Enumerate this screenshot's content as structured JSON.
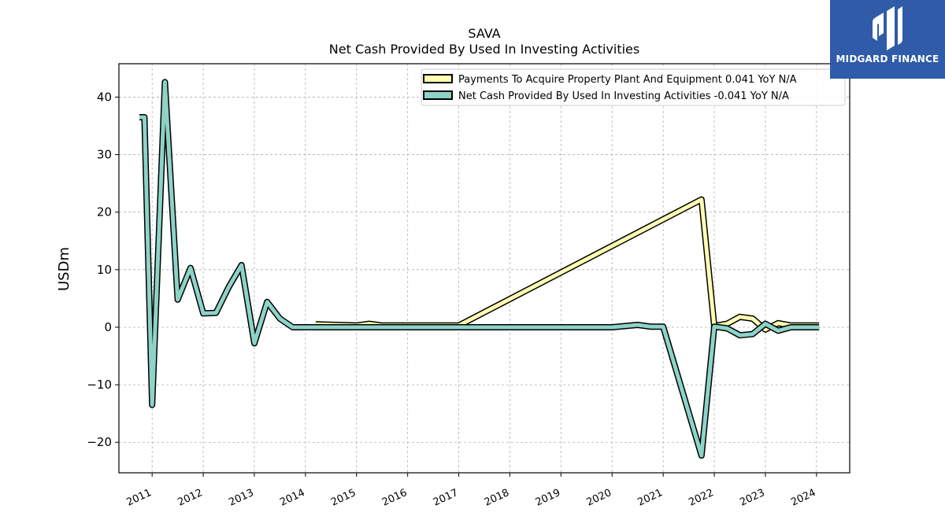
{
  "brand": {
    "name": "MIDGARD FINANCE",
    "logo_icon": "midgard-m-icon",
    "bg_color": "#2f5ba8"
  },
  "chart_data": {
    "type": "line",
    "title": "SAVA",
    "subtitle": "Net Cash Provided By Used In Investing Activities",
    "xlabel": "",
    "ylabel": "USDm",
    "ylim": [
      -25.3,
      45.8
    ],
    "xlim": [
      2010.35,
      2024.65
    ],
    "yticks": [
      -20,
      -10,
      0,
      10,
      20,
      30,
      40
    ],
    "yticklabels": [
      "−20",
      "−10",
      "0",
      "10",
      "20",
      "30",
      "40"
    ],
    "xticks": [
      2011,
      2012,
      2013,
      2014,
      2015,
      2016,
      2017,
      2018,
      2019,
      2020,
      2021,
      2022,
      2023,
      2024
    ],
    "xticklabels": [
      "2011",
      "2012",
      "2013",
      "2014",
      "2015",
      "2016",
      "2017",
      "2018",
      "2019",
      "2020",
      "2021",
      "2022",
      "2023",
      "2024"
    ],
    "grid": true,
    "legend_position": "top-right",
    "series": [
      {
        "name": "Payments To Acquire Property Plant And Equipment  0.041 YoY N/A",
        "color": "#ffffb3",
        "points": [
          [
            2014.2,
            0.5
          ],
          [
            2015.0,
            0.3
          ],
          [
            2015.25,
            0.6
          ],
          [
            2015.5,
            0.3
          ],
          [
            2016.0,
            0.3
          ],
          [
            2016.5,
            0.3
          ],
          [
            2017.0,
            0.3
          ],
          [
            2021.75,
            22.2
          ],
          [
            2022.0,
            0.2
          ],
          [
            2022.25,
            0.6
          ],
          [
            2022.5,
            1.8
          ],
          [
            2022.75,
            1.5
          ],
          [
            2023.0,
            -0.4
          ],
          [
            2023.25,
            0.7
          ],
          [
            2023.5,
            0.3
          ],
          [
            2023.75,
            0.3
          ],
          [
            2024.05,
            0.3
          ]
        ]
      },
      {
        "name": "Net Cash Provided By Used In Investing Activities  -0.041 YoY N/A",
        "color": "#8dd3c7",
        "points": [
          [
            2010.75,
            36.5
          ],
          [
            2010.85,
            36.5
          ],
          [
            2011.0,
            -13.5
          ],
          [
            2011.25,
            42.6
          ],
          [
            2011.5,
            4.8
          ],
          [
            2011.75,
            10.3
          ],
          [
            2012.0,
            2.4
          ],
          [
            2012.25,
            2.5
          ],
          [
            2012.5,
            7.0
          ],
          [
            2012.75,
            10.8
          ],
          [
            2013.0,
            -2.8
          ],
          [
            2013.25,
            4.4
          ],
          [
            2013.5,
            1.5
          ],
          [
            2013.75,
            0.0
          ],
          [
            2014.0,
            0.0
          ],
          [
            2015.0,
            0.0
          ],
          [
            2016.0,
            0.0
          ],
          [
            2017.0,
            0.0
          ],
          [
            2018.0,
            0.0
          ],
          [
            2019.0,
            0.0
          ],
          [
            2020.0,
            0.0
          ],
          [
            2020.5,
            0.4
          ],
          [
            2020.75,
            0.1
          ],
          [
            2021.0,
            0.1
          ],
          [
            2021.75,
            -22.3
          ],
          [
            2022.0,
            0.1
          ],
          [
            2022.25,
            -0.2
          ],
          [
            2022.5,
            -1.4
          ],
          [
            2022.75,
            -1.2
          ],
          [
            2023.0,
            0.6
          ],
          [
            2023.25,
            -0.6
          ],
          [
            2023.5,
            0.0
          ],
          [
            2023.75,
            0.0
          ],
          [
            2024.05,
            0.0
          ]
        ]
      }
    ]
  }
}
